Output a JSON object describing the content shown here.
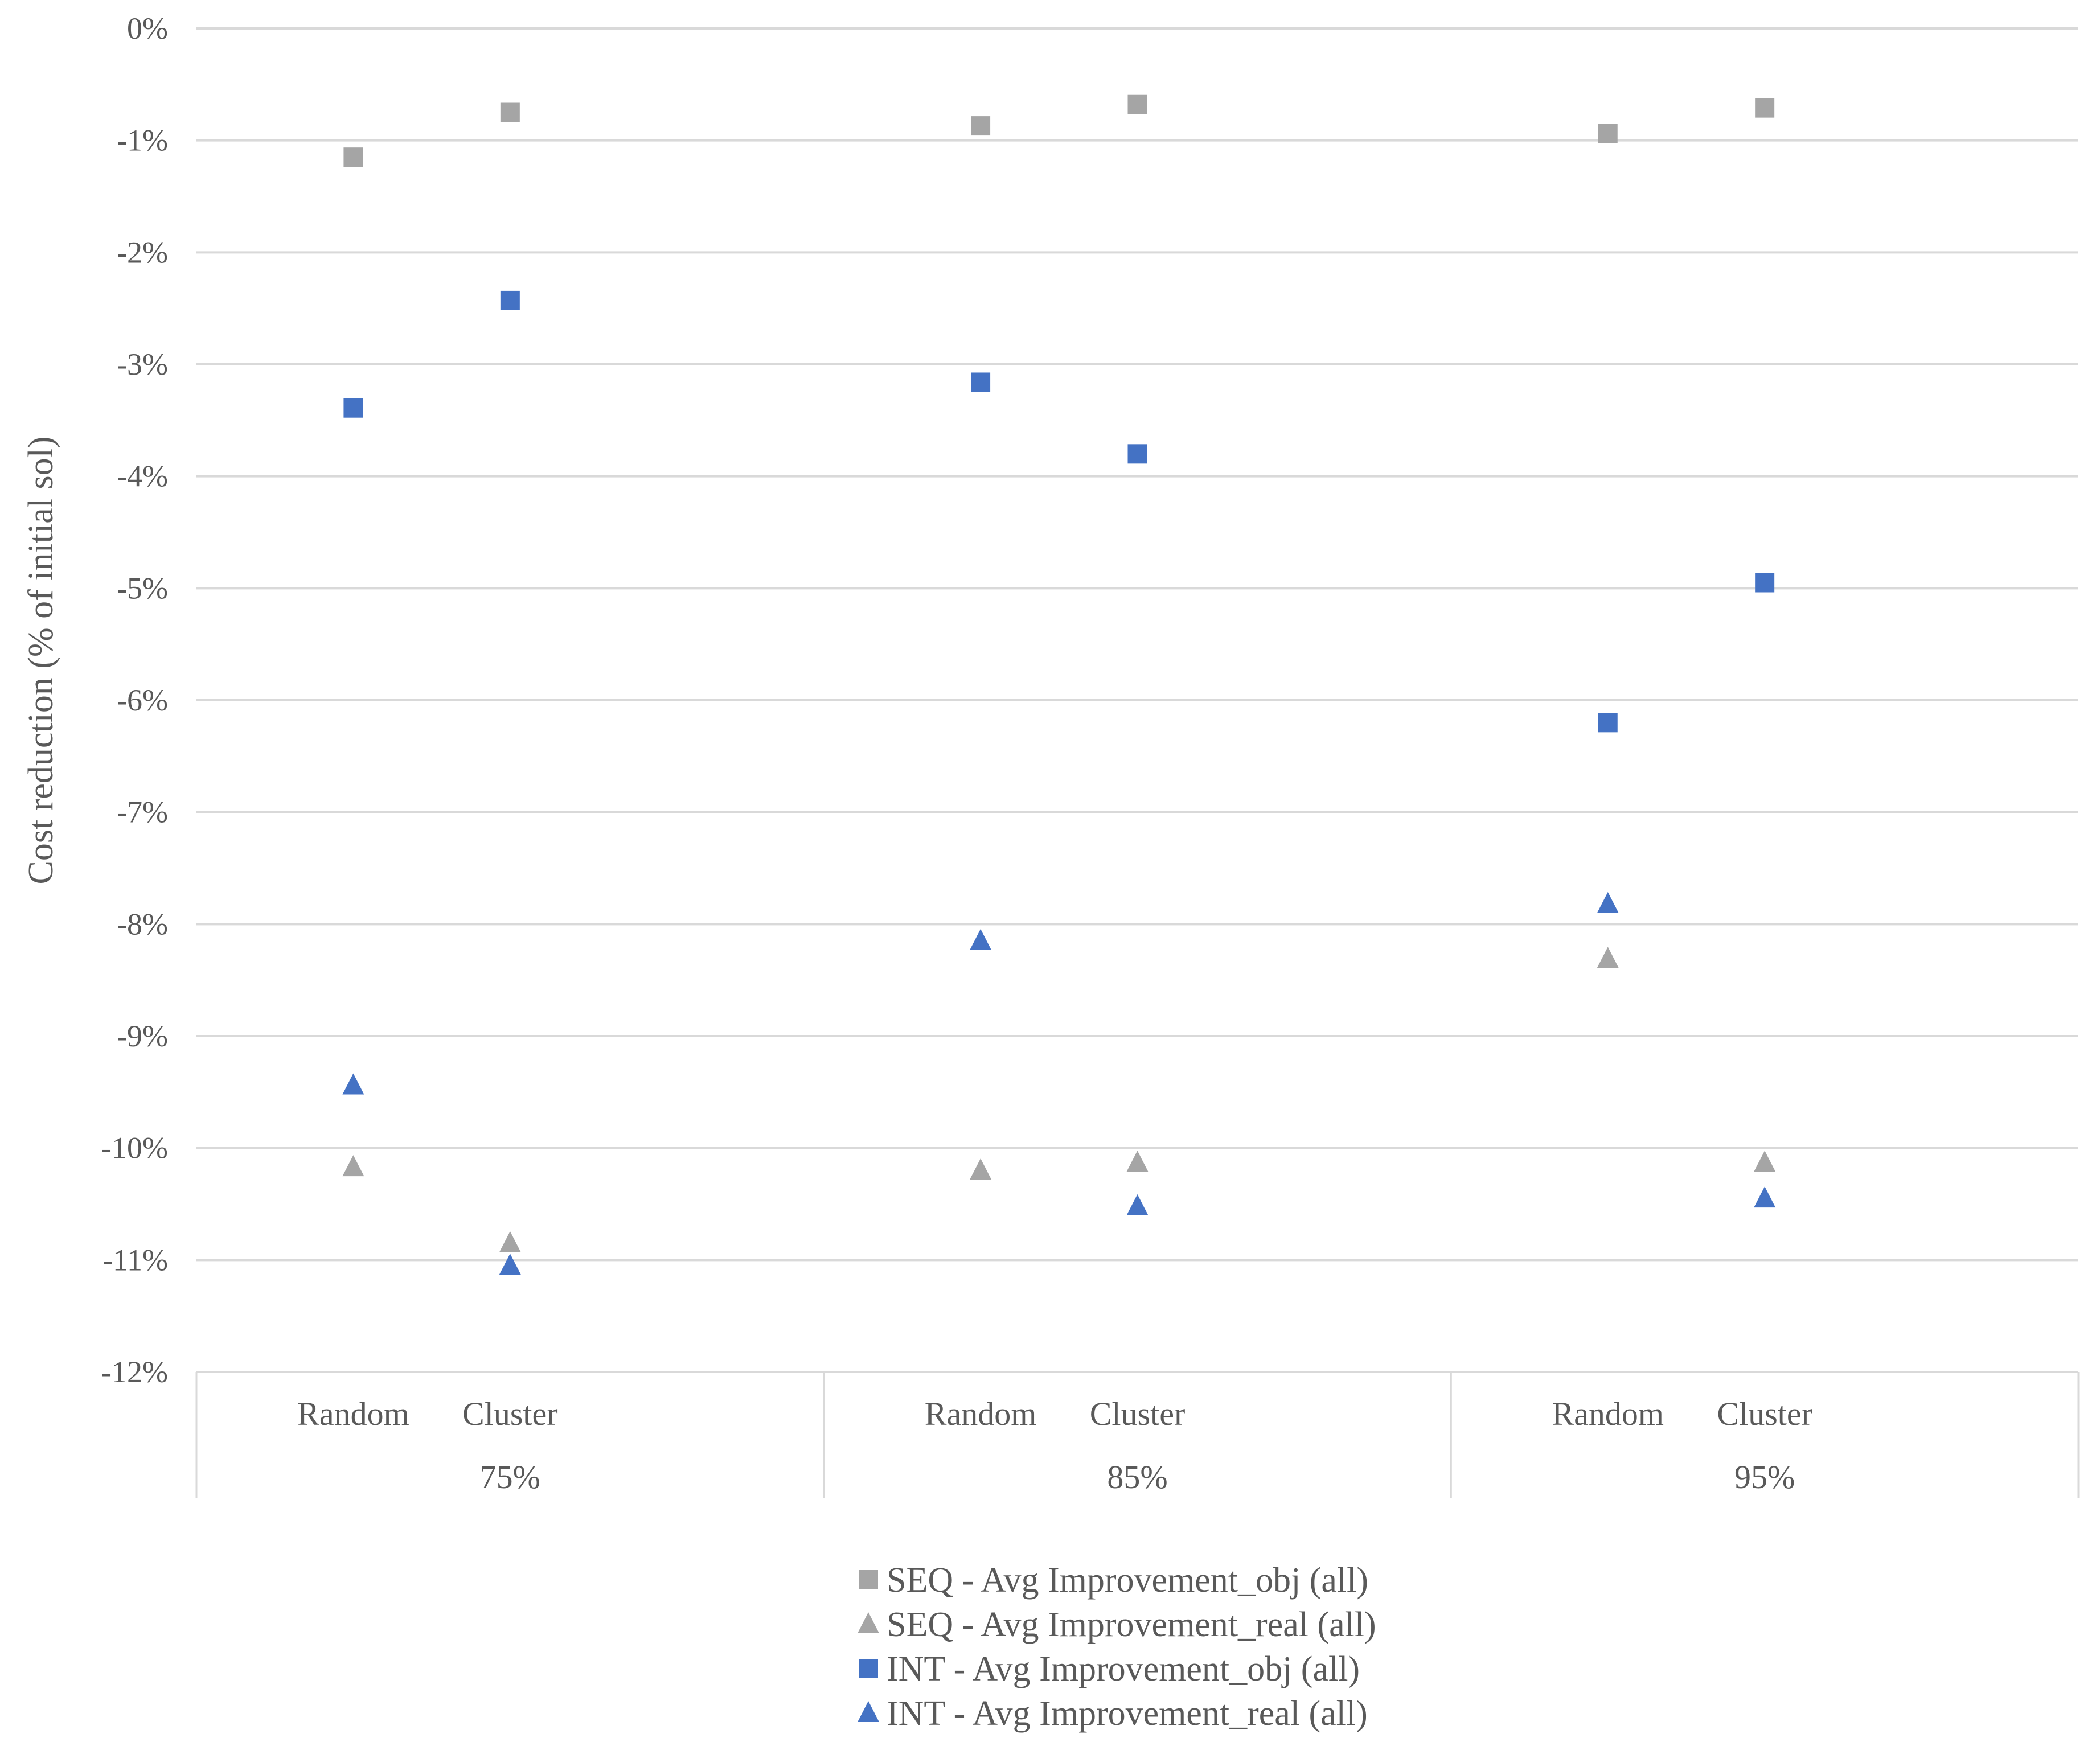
{
  "chart_data": {
    "type": "scatter",
    "ylabel": "Cost reduction (% of initial sol)",
    "ylim": [
      -12,
      0
    ],
    "yticks": [
      "0%",
      "-1%",
      "-2%",
      "-3%",
      "-4%",
      "-5%",
      "-6%",
      "-7%",
      "-8%",
      "-9%",
      "-10%",
      "-11%",
      "-12%"
    ],
    "groups": [
      "75%",
      "85%",
      "95%"
    ],
    "subcategories": [
      "Random",
      "Cluster"
    ],
    "categories": [
      "75% Random",
      "75% Cluster",
      "85% Random",
      "85% Cluster",
      "95% Random",
      "95% Cluster"
    ],
    "grid": true,
    "legend_position": "bottom",
    "series": [
      {
        "name": "SEQ - Avg Improvement_obj (all)",
        "marker": "square",
        "color": "#a5a5a5",
        "values": [
          -1.15,
          -0.75,
          -0.87,
          -0.68,
          -0.94,
          -0.71
        ]
      },
      {
        "name": "SEQ - Avg Improvement_real (all)",
        "marker": "triangle",
        "color": "#a5a5a5",
        "values": [
          -10.17,
          -10.85,
          -10.2,
          -10.13,
          -8.31,
          -10.13
        ]
      },
      {
        "name": "INT - Avg Improvement_obj (all)",
        "marker": "square",
        "color": "#4472c4",
        "values": [
          -3.39,
          -2.43,
          -3.16,
          -3.8,
          -6.2,
          -4.95
        ]
      },
      {
        "name": "INT - Avg Improvement_real (all)",
        "marker": "triangle",
        "color": "#4472c4",
        "values": [
          -9.44,
          -11.05,
          -8.15,
          -10.52,
          -7.82,
          -10.45
        ]
      }
    ]
  }
}
